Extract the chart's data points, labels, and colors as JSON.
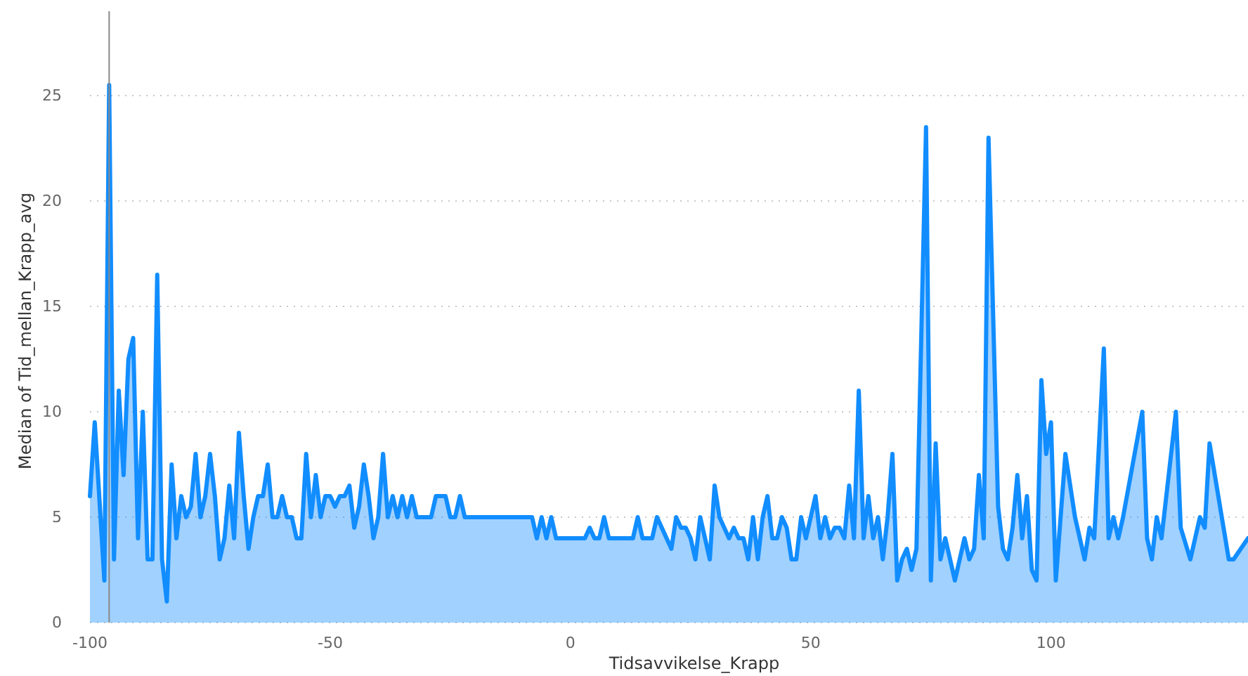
{
  "chart_data": {
    "type": "area",
    "xlabel": "Tidsavvikelse_Krapp",
    "ylabel": "Median of Tid_mellan_Krapp_avg",
    "xlim": [
      -100,
      141
    ],
    "xticks": [
      -100,
      -50,
      0,
      50,
      100
    ],
    "ylim": [
      0,
      29
    ],
    "yticks": [
      0,
      5,
      10,
      15,
      20,
      25
    ],
    "grid": "y",
    "ref_lines": [
      {
        "axis": "x",
        "value": -96,
        "color": "#888888"
      }
    ],
    "x": [
      -100,
      -99,
      -97,
      -96,
      -95,
      -94,
      -93,
      -92,
      -91,
      -90,
      -89,
      -88,
      -87,
      -86,
      -85,
      -84,
      -83,
      -82,
      -81,
      -80,
      -79,
      -78,
      -77,
      -76,
      -75,
      -74,
      -73,
      -72,
      -71,
      -70,
      -69,
      -68,
      -67,
      -66,
      -65,
      -64,
      -63,
      -62,
      -61,
      -60,
      -59,
      -58,
      -57,
      -56,
      -55,
      -54,
      -53,
      -52,
      -51,
      -50,
      -49,
      -48,
      -47,
      -46,
      -45,
      -44,
      -43,
      -42,
      -41,
      -40,
      -39,
      -38,
      -37,
      -36,
      -35,
      -34,
      -33,
      -32,
      -31,
      -29,
      -28,
      -26,
      -25,
      -24,
      -23,
      -22,
      -8,
      -7,
      -6,
      -5,
      -4,
      -3,
      3,
      4,
      5,
      6,
      7,
      8,
      13,
      14,
      15,
      17,
      18,
      19,
      20,
      21,
      22,
      23,
      24,
      25,
      26,
      27,
      28,
      29,
      30,
      31,
      32,
      33,
      34,
      35,
      36,
      37,
      38,
      39,
      40,
      41,
      42,
      43,
      44,
      45,
      46,
      47,
      48,
      49,
      51,
      52,
      53,
      54,
      55,
      56,
      57,
      58,
      59,
      60,
      61,
      62,
      63,
      64,
      65,
      66,
      67,
      68,
      69,
      70,
      71,
      72,
      74,
      75,
      76,
      77,
      78,
      79,
      80,
      81,
      82,
      83,
      84,
      85,
      86,
      87,
      89,
      90,
      91,
      92,
      93,
      94,
      95,
      96,
      97,
      98,
      99,
      100,
      101,
      103,
      105,
      107,
      108,
      109,
      111,
      112,
      113,
      114,
      115,
      119,
      120,
      121,
      122,
      123,
      126,
      127,
      129,
      131,
      132,
      133,
      137,
      138,
      141
    ],
    "series": [
      {
        "color": "#118dff",
        "values": [
          6,
          9.5,
          2,
          25.5,
          3,
          11,
          7,
          12.5,
          13.5,
          4,
          10,
          3,
          3,
          16.5,
          3,
          1,
          7.5,
          4,
          6,
          5,
          5.5,
          8,
          5,
          6,
          8,
          6,
          3,
          4,
          6.5,
          4,
          9,
          6,
          3.5,
          5,
          6,
          6,
          7.5,
          5,
          5,
          6,
          5,
          5,
          4,
          4,
          8,
          5,
          7,
          5,
          6,
          6,
          5.5,
          6,
          6,
          6.5,
          4.5,
          5.5,
          7.5,
          6,
          4,
          5,
          8,
          5,
          6,
          5,
          6,
          5,
          6,
          5,
          5,
          5,
          6,
          6,
          5,
          5,
          6,
          5,
          5,
          4,
          5,
          4,
          5,
          4,
          4,
          4.5,
          4,
          4,
          5,
          4,
          4,
          5,
          4,
          4,
          5,
          4.5,
          4,
          3.5,
          5,
          4.5,
          4.5,
          4,
          3,
          5,
          4,
          3,
          6.5,
          5,
          4.5,
          4,
          4.5,
          4,
          4,
          3,
          5,
          3,
          5,
          6,
          4,
          4,
          5,
          4.5,
          3,
          3,
          5,
          4,
          6,
          4,
          5,
          4,
          4.5,
          4.5,
          4,
          6.5,
          4,
          11,
          4,
          6,
          4,
          5,
          3,
          5,
          8,
          2,
          3,
          3.5,
          2.5,
          3.5,
          23.5,
          2,
          8.5,
          3,
          4,
          3,
          2,
          3,
          4,
          3,
          3.5,
          7,
          4,
          23,
          5.5,
          3.5,
          3,
          4.5,
          7,
          4,
          6,
          2.5,
          2,
          11.5,
          8,
          9.5,
          2,
          8,
          5,
          3,
          4.5,
          4,
          13,
          4,
          5,
          4,
          5,
          10,
          4,
          3,
          5,
          4,
          10,
          4.5,
          3,
          5,
          4.5,
          8.5,
          3,
          3,
          4
        ]
      }
    ]
  }
}
